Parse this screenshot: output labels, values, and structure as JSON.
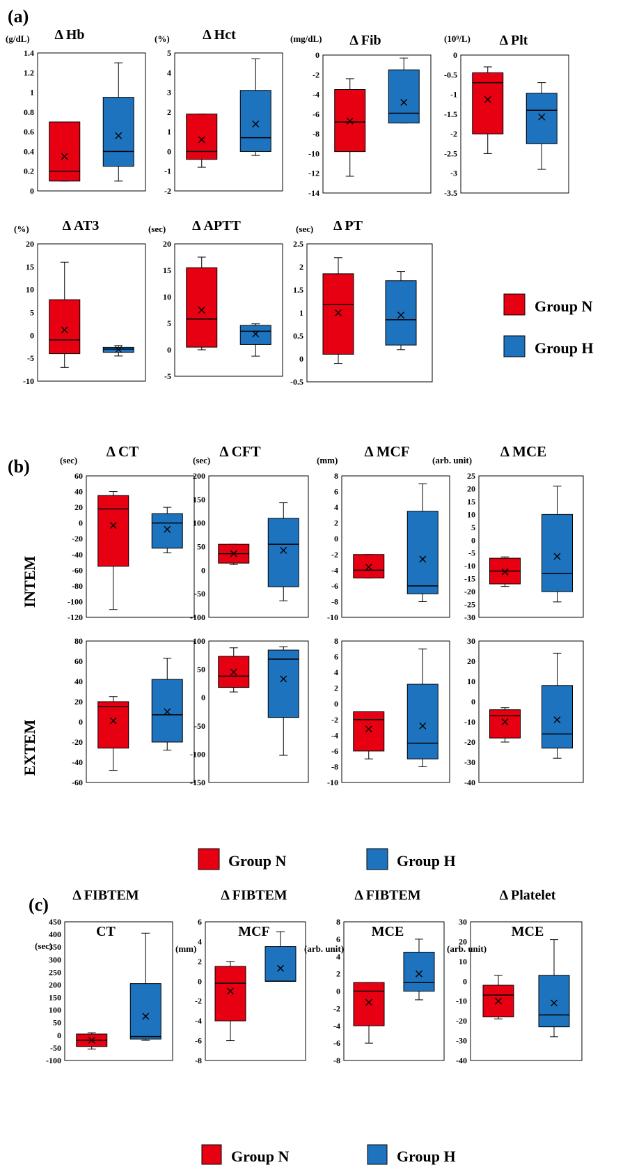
{
  "sections": [
    {
      "id": "a",
      "label": "(a)"
    },
    {
      "id": "b",
      "label": "(b)"
    },
    {
      "id": "c",
      "label": "(c)"
    }
  ],
  "row_labels": {
    "intem": "INTEM",
    "extem": "EXTEM"
  },
  "legend": {
    "group_n": "Group N",
    "group_h": "Group H"
  },
  "colors": {
    "group_n": "#e60012",
    "group_h": "#1e73be",
    "border": "#000000",
    "background": "#ffffff"
  },
  "chart_data": [
    {
      "id": "hb",
      "type": "box",
      "title": "Δ Hb",
      "unit": "(g/dL)",
      "ylim": [
        0,
        1.4
      ],
      "ticks": [
        0,
        0.2,
        0.4,
        0.6,
        0.8,
        1,
        1.2,
        1.4
      ],
      "tick_labels": [
        "0",
        "0.2",
        "0.4",
        "0.6",
        "0.8",
        "1",
        "1.2",
        "1.4"
      ],
      "series": [
        {
          "name": "Group N",
          "whisker_low": 0.1,
          "q1": 0.1,
          "median": 0.2,
          "q3": 0.7,
          "whisker_high": 0.7,
          "mean": 0.35
        },
        {
          "name": "Group H",
          "whisker_low": 0.1,
          "q1": 0.25,
          "median": 0.4,
          "q3": 0.95,
          "whisker_high": 1.3,
          "mean": 0.56
        }
      ]
    },
    {
      "id": "hct",
      "type": "box",
      "title": "Δ Hct",
      "unit": "(%)",
      "ylim": [
        -2,
        5
      ],
      "ticks": [
        -2,
        -1,
        0,
        1,
        2,
        3,
        4,
        5
      ],
      "tick_labels": [
        "-2",
        "-1",
        "0",
        "1",
        "2",
        "3",
        "4",
        "5"
      ],
      "series": [
        {
          "name": "Group N",
          "whisker_low": -0.8,
          "q1": -0.4,
          "median": 0,
          "q3": 1.9,
          "whisker_high": 1.9,
          "mean": 0.6
        },
        {
          "name": "Group H",
          "whisker_low": -0.2,
          "q1": 0,
          "median": 0.7,
          "q3": 3.1,
          "whisker_high": 4.7,
          "mean": 1.4
        }
      ]
    },
    {
      "id": "fib",
      "type": "box",
      "title": "Δ Fib",
      "unit": "(mg/dL)",
      "ylim": [
        -14,
        0
      ],
      "ticks": [
        -14,
        -12,
        -10,
        -8,
        -6,
        -4,
        -2,
        0
      ],
      "tick_labels": [
        "-14",
        "-12",
        "-10",
        "-8",
        "-6",
        "-4",
        "-2",
        "0"
      ],
      "series": [
        {
          "name": "Group N",
          "whisker_low": -12.3,
          "q1": -9.8,
          "median": -6.8,
          "q3": -3.5,
          "whisker_high": -2.4,
          "mean": -6.7
        },
        {
          "name": "Group H",
          "whisker_low": -6.9,
          "q1": -6.9,
          "median": -5.9,
          "q3": -1.5,
          "whisker_high": -0.3,
          "mean": -4.8
        }
      ]
    },
    {
      "id": "plt",
      "type": "box",
      "title": "Δ Plt",
      "unit": "(10⁹/L)",
      "ylim": [
        -3.5,
        0
      ],
      "ticks": [
        -3.5,
        -3,
        -2.5,
        -2,
        -1.5,
        -1,
        -0.5,
        0
      ],
      "tick_labels": [
        "-3.5",
        "-3",
        "-2.5",
        "-2",
        "-1.5",
        "-1",
        "-0.5",
        "0"
      ],
      "series": [
        {
          "name": "Group N",
          "whisker_low": -2.5,
          "q1": -2,
          "median": -0.7,
          "q3": -0.45,
          "whisker_high": -0.3,
          "mean": -1.13
        },
        {
          "name": "Group H",
          "whisker_low": -2.9,
          "q1": -2.25,
          "median": -1.4,
          "q3": -0.97,
          "whisker_high": -0.7,
          "mean": -1.57
        }
      ]
    },
    {
      "id": "at3",
      "type": "box",
      "title": "Δ AT3",
      "unit": "(%)",
      "ylim": [
        -10,
        20
      ],
      "ticks": [
        -10,
        -5,
        0,
        5,
        10,
        15,
        20
      ],
      "tick_labels": [
        "-10",
        "-5",
        "0",
        "5",
        "10",
        "15",
        "20"
      ],
      "series": [
        {
          "name": "Group N",
          "whisker_low": -7,
          "q1": -4,
          "median": -1,
          "q3": 7.8,
          "whisker_high": 16,
          "mean": 1.2
        },
        {
          "name": "Group H",
          "whisker_low": -4.5,
          "q1": -3.7,
          "median": -3,
          "q3": -2.6,
          "whisker_high": -2.2,
          "mean": -3.1
        }
      ]
    },
    {
      "id": "aptt",
      "type": "box",
      "title": "Δ APTT",
      "unit": "(sec)",
      "ylim": [
        -5,
        20
      ],
      "ticks": [
        -5,
        0,
        5,
        10,
        15,
        20
      ],
      "tick_labels": [
        "-5",
        "0",
        "5",
        "10",
        "15",
        "20"
      ],
      "series": [
        {
          "name": "Group N",
          "whisker_low": 0,
          "q1": 0.5,
          "median": 5.8,
          "q3": 15.5,
          "whisker_high": 17.5,
          "mean": 7.5
        },
        {
          "name": "Group H",
          "whisker_low": -1.2,
          "q1": 1,
          "median": 3.5,
          "q3": 4.6,
          "whisker_high": 4.9,
          "mean": 3
        }
      ]
    },
    {
      "id": "pt",
      "type": "box",
      "title": "Δ PT",
      "unit": "(sec)",
      "ylim": [
        -0.5,
        2.5
      ],
      "ticks": [
        -0.5,
        0,
        0.5,
        1,
        1.5,
        2,
        2.5
      ],
      "tick_labels": [
        "-0.5",
        "0",
        "0.5",
        "1",
        "1.5",
        "2",
        "2.5"
      ],
      "series": [
        {
          "name": "Group N",
          "whisker_low": -0.1,
          "q1": 0.1,
          "median": 1.18,
          "q3": 1.85,
          "whisker_high": 2.2,
          "mean": 1
        },
        {
          "name": "Group H",
          "whisker_low": 0.2,
          "q1": 0.3,
          "median": 0.85,
          "q3": 1.7,
          "whisker_high": 1.9,
          "mean": 0.95
        }
      ]
    },
    {
      "id": "intem_ct",
      "type": "box",
      "title": "Δ CT",
      "unit": "(sec)",
      "ylim": [
        -120,
        60
      ],
      "ticks": [
        -120,
        -100,
        -80,
        -60,
        -40,
        -20,
        0,
        20,
        40,
        60
      ],
      "tick_labels": [
        "-120",
        "-100",
        "-80",
        "-60",
        "-40",
        "-20",
        "0",
        "20",
        "40",
        "60"
      ],
      "series": [
        {
          "name": "Group N",
          "whisker_low": -110,
          "q1": -55,
          "median": 18,
          "q3": 35,
          "whisker_high": 40,
          "mean": -3
        },
        {
          "name": "Group H",
          "whisker_low": -38,
          "q1": -32,
          "median": 0,
          "q3": 12,
          "whisker_high": 20,
          "mean": -8
        }
      ]
    },
    {
      "id": "intem_cft",
      "type": "box",
      "title": "Δ CFT",
      "unit": "(sec)",
      "ylim": [
        -100,
        200
      ],
      "ticks": [
        -100,
        -50,
        0,
        50,
        100,
        150,
        200
      ],
      "tick_labels": [
        "-100",
        "-50",
        "0",
        "50",
        "100",
        "150",
        "200"
      ],
      "series": [
        {
          "name": "Group N",
          "whisker_low": 12,
          "q1": 15,
          "median": 35,
          "q3": 55,
          "whisker_high": 55,
          "mean": 35
        },
        {
          "name": "Group H",
          "whisker_low": -65,
          "q1": -35,
          "median": 55,
          "q3": 110,
          "whisker_high": 143,
          "mean": 42
        }
      ]
    },
    {
      "id": "intem_mcf",
      "type": "box",
      "title": "Δ MCF",
      "unit": "(mm)",
      "ylim": [
        -10,
        8
      ],
      "ticks": [
        -10,
        -8,
        -6,
        -4,
        -2,
        0,
        2,
        4,
        6,
        8
      ],
      "tick_labels": [
        "-10",
        "-8",
        "-6",
        "-4",
        "-2",
        "0",
        "2",
        "4",
        "6",
        "8"
      ],
      "series": [
        {
          "name": "Group N",
          "whisker_low": -5,
          "q1": -5,
          "median": -4,
          "q3": -2,
          "whisker_high": -2,
          "mean": -3.6
        },
        {
          "name": "Group H",
          "whisker_low": -8,
          "q1": -7,
          "median": -6,
          "q3": 3.5,
          "whisker_high": 7,
          "mean": -2.6
        }
      ]
    },
    {
      "id": "intem_mce",
      "type": "box",
      "title": "Δ MCE",
      "unit": "(arb. unit)",
      "ylim": [
        -30,
        25
      ],
      "ticks": [
        -30,
        -25,
        -20,
        -15,
        -10,
        -5,
        0,
        5,
        10,
        15,
        20,
        25
      ],
      "tick_labels": [
        "-30",
        "-25",
        "-20",
        "-15",
        "-10",
        "-5",
        "0",
        "5",
        "10",
        "15",
        "20",
        "25"
      ],
      "series": [
        {
          "name": "Group N",
          "whisker_low": -18,
          "q1": -17,
          "median": -12,
          "q3": -7,
          "whisker_high": -6.5,
          "mean": -12.3
        },
        {
          "name": "Group H",
          "whisker_low": -24,
          "q1": -20,
          "median": -13,
          "q3": 10,
          "whisker_high": 21,
          "mean": -6.3
        }
      ]
    },
    {
      "id": "extem_ct",
      "type": "box",
      "title": "",
      "unit": "",
      "ylim": [
        -60,
        80
      ],
      "ticks": [
        -60,
        -40,
        -20,
        0,
        20,
        40,
        60,
        80
      ],
      "tick_labels": [
        "-60",
        "-40",
        "-20",
        "0",
        "20",
        "40",
        "60",
        "80"
      ],
      "series": [
        {
          "name": "Group N",
          "whisker_low": -48,
          "q1": -26,
          "median": 15,
          "q3": 20,
          "whisker_high": 25,
          "mean": 1
        },
        {
          "name": "Group H",
          "whisker_low": -28,
          "q1": -20,
          "median": 7,
          "q3": 42,
          "whisker_high": 63,
          "mean": 10
        }
      ]
    },
    {
      "id": "extem_cft",
      "type": "box",
      "title": "",
      "unit": "",
      "ylim": [
        -150,
        100
      ],
      "ticks": [
        -150,
        -100,
        -50,
        0,
        50,
        100
      ],
      "tick_labels": [
        "-150",
        "-100",
        "-50",
        "0",
        "50",
        "100"
      ],
      "series": [
        {
          "name": "Group N",
          "whisker_low": 10,
          "q1": 18,
          "median": 38,
          "q3": 73,
          "whisker_high": 88,
          "mean": 45
        },
        {
          "name": "Group H",
          "whisker_low": -102,
          "q1": -35,
          "median": 68,
          "q3": 84,
          "whisker_high": 90,
          "mean": 33
        }
      ]
    },
    {
      "id": "extem_mcf",
      "type": "box",
      "title": "",
      "unit": "",
      "ylim": [
        -10,
        8
      ],
      "ticks": [
        -10,
        -8,
        -6,
        -4,
        -2,
        0,
        2,
        4,
        6,
        8
      ],
      "tick_labels": [
        "-10",
        "-8",
        "-6",
        "-4",
        "-2",
        "0",
        "2",
        "4",
        "6",
        "8"
      ],
      "series": [
        {
          "name": "Group N",
          "whisker_low": -7,
          "q1": -6,
          "median": -2,
          "q3": -1,
          "whisker_high": -1,
          "mean": -3.2
        },
        {
          "name": "Group H",
          "whisker_low": -8,
          "q1": -7,
          "median": -5,
          "q3": 2.5,
          "whisker_high": 7,
          "mean": -2.8
        }
      ]
    },
    {
      "id": "extem_mce",
      "type": "box",
      "title": "",
      "unit": "",
      "ylim": [
        -40,
        30
      ],
      "ticks": [
        -40,
        -30,
        -20,
        -10,
        0,
        10,
        20,
        30
      ],
      "tick_labels": [
        "-40",
        "-30",
        "-20",
        "-10",
        "0",
        "10",
        "20",
        "30"
      ],
      "series": [
        {
          "name": "Group N",
          "whisker_low": -20,
          "q1": -18,
          "median": -7,
          "q3": -4,
          "whisker_high": -3,
          "mean": -10
        },
        {
          "name": "Group H",
          "whisker_low": -28,
          "q1": -23,
          "median": -16,
          "q3": 8,
          "whisker_high": 24,
          "mean": -9
        }
      ]
    },
    {
      "id": "fibtem_ct",
      "type": "box",
      "title": [
        "Δ FIBTEM",
        "CT"
      ],
      "unit": "(sec)",
      "ylim": [
        -100,
        450
      ],
      "ticks": [
        -100,
        -50,
        0,
        50,
        100,
        150,
        200,
        250,
        300,
        350,
        400,
        450
      ],
      "tick_labels": [
        "-100",
        "-50",
        "0",
        "50",
        "100",
        "150",
        "200",
        "250",
        "300",
        "350",
        "400",
        "450"
      ],
      "series": [
        {
          "name": "Group N",
          "whisker_low": -55,
          "q1": -45,
          "median": -20,
          "q3": 5,
          "whisker_high": 10,
          "mean": -20
        },
        {
          "name": "Group H",
          "whisker_low": -20,
          "q1": -15,
          "median": -5,
          "q3": 205,
          "whisker_high": 405,
          "mean": 75
        }
      ]
    },
    {
      "id": "fibtem_mcf",
      "type": "box",
      "title": [
        "Δ FIBTEM",
        "MCF"
      ],
      "unit": "(mm)",
      "ylim": [
        -8,
        6
      ],
      "ticks": [
        -8,
        -6,
        -4,
        -2,
        0,
        2,
        4,
        6
      ],
      "tick_labels": [
        "-8",
        "-6",
        "-4",
        "-2",
        "0",
        "2",
        "4",
        "6"
      ],
      "series": [
        {
          "name": "Group N",
          "whisker_low": -6,
          "q1": -4,
          "median": -0.2,
          "q3": 1.5,
          "whisker_high": 2,
          "mean": -1
        },
        {
          "name": "Group H",
          "whisker_low": 0,
          "q1": 0,
          "median": 0,
          "q3": 3.5,
          "whisker_high": 5,
          "mean": 1.3
        }
      ]
    },
    {
      "id": "fibtem_mce",
      "type": "box",
      "title": [
        "Δ FIBTEM",
        "MCE"
      ],
      "unit": "(arb. unit)",
      "ylim": [
        -8,
        8
      ],
      "ticks": [
        -8,
        -6,
        -4,
        -2,
        0,
        2,
        4,
        6,
        8
      ],
      "tick_labels": [
        "-8",
        "-6",
        "-4",
        "-2",
        "0",
        "2",
        "4",
        "6",
        "8"
      ],
      "series": [
        {
          "name": "Group N",
          "whisker_low": -6,
          "q1": -4,
          "median": 0,
          "q3": 1,
          "whisker_high": 1,
          "mean": -1.3
        },
        {
          "name": "Group H",
          "whisker_low": -1,
          "q1": 0,
          "median": 1,
          "q3": 4.5,
          "whisker_high": 6,
          "mean": 2
        }
      ]
    },
    {
      "id": "platelet_mce",
      "type": "box",
      "title": [
        "Δ Platelet",
        "MCE"
      ],
      "unit": "(arb. unit)",
      "ylim": [
        -40,
        30
      ],
      "ticks": [
        -40,
        -30,
        -20,
        -10,
        0,
        10,
        20,
        30
      ],
      "tick_labels": [
        "-40",
        "-30",
        "-20",
        "-10",
        "0",
        "10",
        "20",
        "30"
      ],
      "series": [
        {
          "name": "Group N",
          "whisker_low": -19,
          "q1": -18,
          "median": -7,
          "q3": -2,
          "whisker_high": 3,
          "mean": -10
        },
        {
          "name": "Group H",
          "whisker_low": -28,
          "q1": -23,
          "median": -17,
          "q3": 3,
          "whisker_high": 21,
          "mean": -11
        }
      ]
    }
  ]
}
